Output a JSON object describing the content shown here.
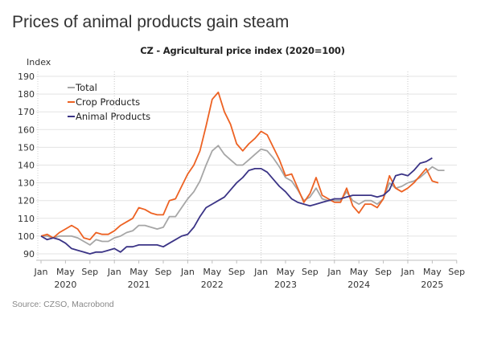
{
  "headline": "Prices of animal products gain steam",
  "source": "Source: CZSO, Macrobond",
  "chart_data": {
    "type": "line",
    "title": "CZ - Agricultural price index (2020=100)",
    "ylabel": "Index",
    "xlabel": "",
    "ylim": [
      88,
      192
    ],
    "yticks": [
      90,
      100,
      110,
      120,
      130,
      140,
      150,
      160,
      170,
      180,
      190
    ],
    "grid": true,
    "legend_position": "top-left",
    "x_start": "2020-01",
    "x_frequency": "monthly",
    "xticks": [
      {
        "label": "Jan",
        "month_index": 0
      },
      {
        "label": "May",
        "month_index": 4
      },
      {
        "label": "Sep",
        "month_index": 8
      },
      {
        "label": "Jan",
        "month_index": 12
      },
      {
        "label": "May",
        "month_index": 16
      },
      {
        "label": "Sep",
        "month_index": 20
      },
      {
        "label": "Jan",
        "month_index": 24
      },
      {
        "label": "May",
        "month_index": 28
      },
      {
        "label": "Sep",
        "month_index": 32
      },
      {
        "label": "Jan",
        "month_index": 36
      },
      {
        "label": "May",
        "month_index": 40
      },
      {
        "label": "Sep",
        "month_index": 44
      },
      {
        "label": "Jan",
        "month_index": 48
      },
      {
        "label": "May",
        "month_index": 52
      },
      {
        "label": "Sep",
        "month_index": 56
      },
      {
        "label": "Jan",
        "month_index": 60
      },
      {
        "label": "May",
        "month_index": 64
      },
      {
        "label": "Sep",
        "month_index": 68
      }
    ],
    "year_labels": [
      {
        "label": "2020",
        "month_index": 4
      },
      {
        "label": "2021",
        "month_index": 16
      },
      {
        "label": "2022",
        "month_index": 28
      },
      {
        "label": "2023",
        "month_index": 40
      },
      {
        "label": "2024",
        "month_index": 52
      },
      {
        "label": "2025",
        "month_index": 64
      }
    ],
    "series": [
      {
        "name": "Total",
        "color": "#a6a6a6",
        "values": [
          100,
          100,
          99,
          100,
          100,
          100,
          99,
          97,
          95,
          98,
          97,
          97,
          99,
          100,
          102,
          103,
          106,
          106,
          105,
          104,
          105,
          111,
          111,
          116,
          121,
          125,
          131,
          140,
          148,
          151,
          146,
          143,
          140,
          140,
          143,
          146,
          149,
          148,
          144,
          139,
          133,
          131,
          126,
          120,
          122,
          127,
          121,
          120,
          120,
          120,
          125,
          120,
          118,
          120,
          120,
          118,
          121,
          130,
          127,
          128,
          130,
          131,
          133,
          136,
          139,
          137,
          137
        ]
      },
      {
        "name": "Crop Products",
        "color": "#ed6223",
        "values": [
          100,
          101,
          99,
          102,
          104,
          106,
          104,
          99,
          98,
          102,
          101,
          101,
          103,
          106,
          108,
          110,
          116,
          115,
          113,
          112,
          112,
          120,
          121,
          128,
          135,
          140,
          148,
          162,
          177,
          181,
          170,
          163,
          152,
          148,
          152,
          155,
          159,
          157,
          150,
          143,
          134,
          135,
          127,
          119,
          124,
          133,
          123,
          121,
          119,
          119,
          127,
          117,
          113,
          118,
          118,
          116,
          121,
          134,
          127,
          125,
          127,
          130,
          134,
          138,
          131,
          130
        ]
      },
      {
        "name": "Animal Products",
        "color": "#3b3486",
        "values": [
          100,
          98,
          99,
          98,
          96,
          93,
          92,
          91,
          90,
          91,
          91,
          92,
          93,
          91,
          94,
          94,
          95,
          95,
          95,
          95,
          94,
          96,
          98,
          100,
          101,
          105,
          111,
          116,
          118,
          120,
          122,
          126,
          130,
          133,
          137,
          138,
          138,
          136,
          132,
          128,
          125,
          121,
          119,
          118,
          117,
          118,
          119,
          120,
          121,
          121,
          122,
          123,
          123,
          123,
          123,
          122,
          123,
          126,
          134,
          135,
          134,
          137,
          141,
          142,
          144
        ]
      }
    ]
  }
}
